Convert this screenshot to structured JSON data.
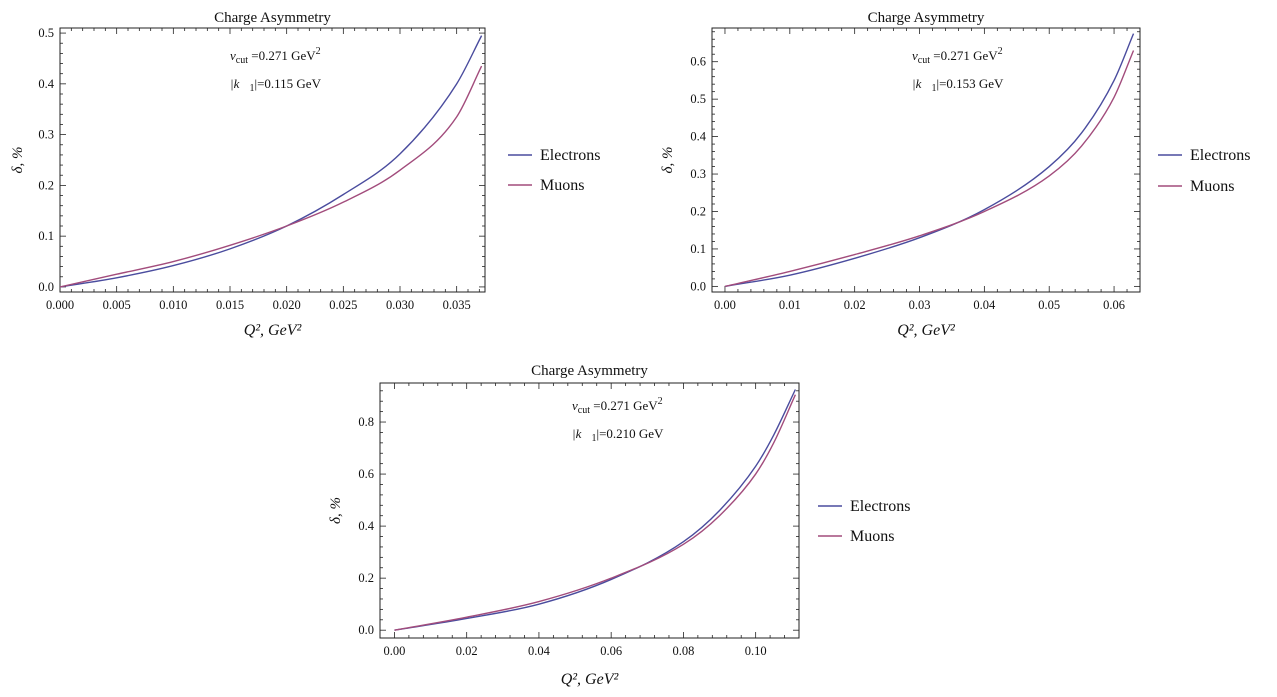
{
  "colors": {
    "electrons": "#4a4c9e",
    "muons": "#a24c7c",
    "frame": "#222222"
  },
  "chart_data": [
    {
      "type": "line",
      "title": "Charge Asymmetry",
      "xlabel": "Q², GeV²",
      "ylabel": "δ, %",
      "xlim": [
        0,
        0.0375
      ],
      "ylim": [
        -0.01,
        0.51
      ],
      "xticks": [
        0.0,
        0.005,
        0.01,
        0.015,
        0.02,
        0.025,
        0.03,
        0.035
      ],
      "xtick_labels": [
        "0.000",
        "0.005",
        "0.010",
        "0.015",
        "0.020",
        "0.025",
        "0.030",
        "0.035"
      ],
      "yticks": [
        0.0,
        0.1,
        0.2,
        0.3,
        0.4,
        0.5
      ],
      "ytick_labels": [
        "0.0",
        "0.1",
        "0.2",
        "0.3",
        "0.4",
        "0.5"
      ],
      "annotations": {
        "nu_main": "ν",
        "nu_sub": "cut",
        "nu_value": " =0.271 GeV",
        "nu_exp": "2",
        "k_main": "|k⃗",
        "k_sub": "1",
        "k_value": "|=0.115 GeV"
      },
      "legend": "right",
      "series": [
        {
          "name": "Electrons",
          "x": [
            0,
            0.005,
            0.01,
            0.015,
            0.02,
            0.025,
            0.03,
            0.035,
            0.0372
          ],
          "y": [
            0.0,
            0.018,
            0.042,
            0.075,
            0.12,
            0.182,
            0.262,
            0.4,
            0.495
          ]
        },
        {
          "name": "Muons",
          "x": [
            0,
            0.005,
            0.01,
            0.015,
            0.02,
            0.025,
            0.03,
            0.035,
            0.0372
          ],
          "y": [
            0.0,
            0.025,
            0.05,
            0.082,
            0.12,
            0.167,
            0.23,
            0.335,
            0.435
          ]
        }
      ]
    },
    {
      "type": "line",
      "title": "Charge Asymmetry",
      "xlabel": "Q², GeV²",
      "ylabel": "δ, %",
      "xlim": [
        -0.002,
        0.064
      ],
      "ylim": [
        -0.015,
        0.69
      ],
      "xticks": [
        0.0,
        0.01,
        0.02,
        0.03,
        0.04,
        0.05,
        0.06
      ],
      "xtick_labels": [
        "0.00",
        "0.01",
        "0.02",
        "0.03",
        "0.04",
        "0.05",
        "0.06"
      ],
      "yticks": [
        0.0,
        0.1,
        0.2,
        0.3,
        0.4,
        0.5,
        0.6
      ],
      "ytick_labels": [
        "0.0",
        "0.1",
        "0.2",
        "0.3",
        "0.4",
        "0.5",
        "0.6"
      ],
      "annotations": {
        "nu_main": "ν",
        "nu_sub": "cut",
        "nu_value": " =0.271 GeV",
        "nu_exp": "2",
        "k_main": "|k⃗",
        "k_sub": "1",
        "k_value": "|=0.153 GeV"
      },
      "legend": "right",
      "series": [
        {
          "name": "Electrons",
          "x": [
            0,
            0.01,
            0.02,
            0.03,
            0.04,
            0.05,
            0.055,
            0.06,
            0.063
          ],
          "y": [
            0.0,
            0.03,
            0.075,
            0.13,
            0.205,
            0.32,
            0.41,
            0.55,
            0.675
          ]
        },
        {
          "name": "Muons",
          "x": [
            0,
            0.01,
            0.02,
            0.03,
            0.04,
            0.05,
            0.055,
            0.06,
            0.063
          ],
          "y": [
            0.0,
            0.04,
            0.085,
            0.135,
            0.2,
            0.295,
            0.375,
            0.505,
            0.63
          ]
        }
      ]
    },
    {
      "type": "line",
      "title": "Charge Asymmetry",
      "xlabel": "Q², GeV²",
      "ylabel": "δ, %",
      "xlim": [
        -0.004,
        0.112
      ],
      "ylim": [
        -0.03,
        0.95
      ],
      "xticks": [
        0.0,
        0.02,
        0.04,
        0.06,
        0.08,
        0.1
      ],
      "xtick_labels": [
        "0.00",
        "0.02",
        "0.04",
        "0.06",
        "0.08",
        "0.10"
      ],
      "yticks": [
        0.0,
        0.2,
        0.4,
        0.6,
        0.8
      ],
      "ytick_labels": [
        "0.0",
        "0.2",
        "0.4",
        "0.6",
        "0.8"
      ],
      "annotations": {
        "nu_main": "ν",
        "nu_sub": "cut",
        "nu_value": " =0.271 GeV",
        "nu_exp": "2",
        "k_main": "|k⃗",
        "k_sub": "1",
        "k_value": "|=0.210 GeV"
      },
      "legend": "right",
      "series": [
        {
          "name": "Electrons",
          "x": [
            0,
            0.02,
            0.04,
            0.06,
            0.08,
            0.09,
            0.1,
            0.105,
            0.111
          ],
          "y": [
            0.0,
            0.045,
            0.1,
            0.195,
            0.34,
            0.46,
            0.63,
            0.75,
            0.925
          ]
        },
        {
          "name": "Muons",
          "x": [
            0,
            0.02,
            0.04,
            0.06,
            0.08,
            0.09,
            0.1,
            0.105,
            0.111
          ],
          "y": [
            0.0,
            0.05,
            0.11,
            0.2,
            0.33,
            0.44,
            0.6,
            0.72,
            0.905
          ]
        }
      ]
    }
  ]
}
